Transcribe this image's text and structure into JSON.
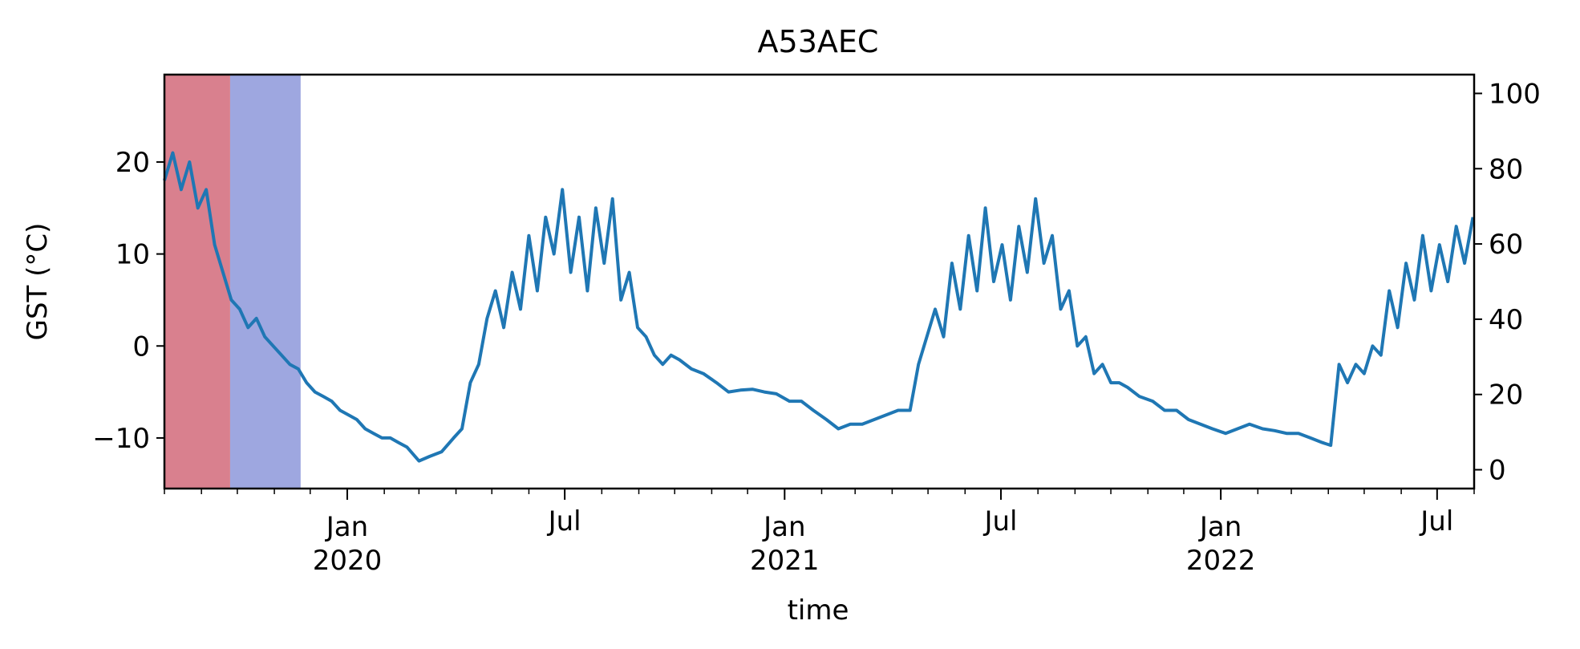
{
  "chart_data": {
    "type": "line",
    "title": "A53AEC",
    "xlabel": "time",
    "ylabel": "GST (°C)",
    "ylim": [
      -15.5,
      29.5
    ],
    "y2lim": [
      -5,
      105
    ],
    "xlim": [
      "2019-08-01",
      "2022-08-01"
    ],
    "y_ticks": [
      {
        "v": -10,
        "label": "−10"
      },
      {
        "v": 0,
        "label": "0"
      },
      {
        "v": 10,
        "label": "10"
      },
      {
        "v": 20,
        "label": "20"
      }
    ],
    "y2_ticks": [
      {
        "v": 0,
        "label": "0"
      },
      {
        "v": 20,
        "label": "20"
      },
      {
        "v": 40,
        "label": "40"
      },
      {
        "v": 60,
        "label": "60"
      },
      {
        "v": 80,
        "label": "80"
      },
      {
        "v": 100,
        "label": "100"
      }
    ],
    "x_ticks": [
      {
        "date": "2020-01-01",
        "line1": "Jan",
        "line2": "2020"
      },
      {
        "date": "2020-07-01",
        "line1": "Jul",
        "line2": ""
      },
      {
        "date": "2021-01-01",
        "line1": "Jan",
        "line2": "2021"
      },
      {
        "date": "2021-07-01",
        "line1": "Jul",
        "line2": ""
      },
      {
        "date": "2022-01-01",
        "line1": "Jan",
        "line2": "2022"
      },
      {
        "date": "2022-07-01",
        "line1": "Jul",
        "line2": ""
      }
    ],
    "bands": [
      {
        "start": "2019-08-01",
        "end": "2019-09-25",
        "color": "#d9808e"
      },
      {
        "start": "2019-09-25",
        "end": "2019-11-23",
        "color": "#9ea7e0"
      }
    ],
    "series": [
      {
        "color": "#1f77b4",
        "points": [
          [
            "2019-08-01",
            18
          ],
          [
            "2019-08-08",
            21
          ],
          [
            "2019-08-15",
            17
          ],
          [
            "2019-08-22",
            20
          ],
          [
            "2019-08-29",
            15
          ],
          [
            "2019-09-05",
            17
          ],
          [
            "2019-09-12",
            11
          ],
          [
            "2019-09-19",
            8
          ],
          [
            "2019-09-26",
            5
          ],
          [
            "2019-10-03",
            4
          ],
          [
            "2019-10-10",
            2
          ],
          [
            "2019-10-17",
            3
          ],
          [
            "2019-10-24",
            1
          ],
          [
            "2019-10-31",
            0
          ],
          [
            "2019-11-07",
            -1
          ],
          [
            "2019-11-14",
            -2
          ],
          [
            "2019-11-21",
            -2.5
          ],
          [
            "2019-11-28",
            -4
          ],
          [
            "2019-12-05",
            -5
          ],
          [
            "2019-12-12",
            -5.5
          ],
          [
            "2019-12-19",
            -6
          ],
          [
            "2019-12-26",
            -7
          ],
          [
            "2020-01-02",
            -7.5
          ],
          [
            "2020-01-09",
            -8
          ],
          [
            "2020-01-16",
            -9
          ],
          [
            "2020-01-23",
            -9.5
          ],
          [
            "2020-01-30",
            -10
          ],
          [
            "2020-02-06",
            -10
          ],
          [
            "2020-02-13",
            -10.5
          ],
          [
            "2020-02-20",
            -11
          ],
          [
            "2020-03-01",
            -12.5
          ],
          [
            "2020-03-10",
            -12
          ],
          [
            "2020-03-20",
            -11.5
          ],
          [
            "2020-03-30",
            -10
          ],
          [
            "2020-04-06",
            -9
          ],
          [
            "2020-04-13",
            -4
          ],
          [
            "2020-04-20",
            -2
          ],
          [
            "2020-04-27",
            3
          ],
          [
            "2020-05-04",
            6
          ],
          [
            "2020-05-11",
            2
          ],
          [
            "2020-05-18",
            8
          ],
          [
            "2020-05-25",
            4
          ],
          [
            "2020-06-01",
            12
          ],
          [
            "2020-06-08",
            6
          ],
          [
            "2020-06-15",
            14
          ],
          [
            "2020-06-22",
            10
          ],
          [
            "2020-06-29",
            17
          ],
          [
            "2020-07-06",
            8
          ],
          [
            "2020-07-13",
            14
          ],
          [
            "2020-07-20",
            6
          ],
          [
            "2020-07-27",
            15
          ],
          [
            "2020-08-03",
            9
          ],
          [
            "2020-08-10",
            16
          ],
          [
            "2020-08-17",
            5
          ],
          [
            "2020-08-24",
            8
          ],
          [
            "2020-08-31",
            2
          ],
          [
            "2020-09-07",
            1
          ],
          [
            "2020-09-14",
            -1
          ],
          [
            "2020-09-21",
            -2
          ],
          [
            "2020-09-28",
            -1
          ],
          [
            "2020-10-05",
            -1.5
          ],
          [
            "2020-10-15",
            -2.5
          ],
          [
            "2020-10-25",
            -3
          ],
          [
            "2020-11-05",
            -4
          ],
          [
            "2020-11-15",
            -5
          ],
          [
            "2020-11-25",
            -4.8
          ],
          [
            "2020-12-05",
            -4.7
          ],
          [
            "2020-12-15",
            -5
          ],
          [
            "2020-12-25",
            -5.2
          ],
          [
            "2021-01-05",
            -6
          ],
          [
            "2021-01-15",
            -6
          ],
          [
            "2021-01-25",
            -7
          ],
          [
            "2021-02-05",
            -8
          ],
          [
            "2021-02-15",
            -9
          ],
          [
            "2021-02-25",
            -8.5
          ],
          [
            "2021-03-07",
            -8.5
          ],
          [
            "2021-03-17",
            -8
          ],
          [
            "2021-03-27",
            -7.5
          ],
          [
            "2021-04-06",
            -7
          ],
          [
            "2021-04-16",
            -7
          ],
          [
            "2021-04-23",
            -2
          ],
          [
            "2021-04-30",
            1
          ],
          [
            "2021-05-07",
            4
          ],
          [
            "2021-05-14",
            1
          ],
          [
            "2021-05-21",
            9
          ],
          [
            "2021-05-28",
            4
          ],
          [
            "2021-06-04",
            12
          ],
          [
            "2021-06-11",
            6
          ],
          [
            "2021-06-18",
            15
          ],
          [
            "2021-06-25",
            7
          ],
          [
            "2021-07-02",
            11
          ],
          [
            "2021-07-09",
            5
          ],
          [
            "2021-07-16",
            13
          ],
          [
            "2021-07-23",
            8
          ],
          [
            "2021-07-30",
            16
          ],
          [
            "2021-08-06",
            9
          ],
          [
            "2021-08-13",
            12
          ],
          [
            "2021-08-20",
            4
          ],
          [
            "2021-08-27",
            6
          ],
          [
            "2021-09-03",
            0
          ],
          [
            "2021-09-10",
            1
          ],
          [
            "2021-09-17",
            -3
          ],
          [
            "2021-09-24",
            -2
          ],
          [
            "2021-10-01",
            -4
          ],
          [
            "2021-10-08",
            -4
          ],
          [
            "2021-10-15",
            -4.5
          ],
          [
            "2021-10-25",
            -5.5
          ],
          [
            "2021-11-05",
            -6
          ],
          [
            "2021-11-15",
            -7
          ],
          [
            "2021-11-25",
            -7
          ],
          [
            "2021-12-05",
            -8
          ],
          [
            "2021-12-15",
            -8.5
          ],
          [
            "2021-12-25",
            -9
          ],
          [
            "2022-01-05",
            -9.5
          ],
          [
            "2022-01-15",
            -9
          ],
          [
            "2022-01-25",
            -8.5
          ],
          [
            "2022-02-05",
            -9
          ],
          [
            "2022-02-15",
            -9.2
          ],
          [
            "2022-02-25",
            -9.5
          ],
          [
            "2022-03-07",
            -9.5
          ],
          [
            "2022-03-17",
            -10
          ],
          [
            "2022-03-27",
            -10.5
          ],
          [
            "2022-04-03",
            -10.8
          ],
          [
            "2022-04-10",
            -2
          ],
          [
            "2022-04-17",
            -4
          ],
          [
            "2022-04-24",
            -2
          ],
          [
            "2022-05-01",
            -3
          ],
          [
            "2022-05-08",
            0
          ],
          [
            "2022-05-15",
            -1
          ],
          [
            "2022-05-22",
            6
          ],
          [
            "2022-05-29",
            2
          ],
          [
            "2022-06-05",
            9
          ],
          [
            "2022-06-12",
            5
          ],
          [
            "2022-06-19",
            12
          ],
          [
            "2022-06-26",
            6
          ],
          [
            "2022-07-03",
            11
          ],
          [
            "2022-07-10",
            7
          ],
          [
            "2022-07-17",
            13
          ],
          [
            "2022-07-24",
            9
          ],
          [
            "2022-07-31",
            14
          ]
        ]
      }
    ]
  }
}
